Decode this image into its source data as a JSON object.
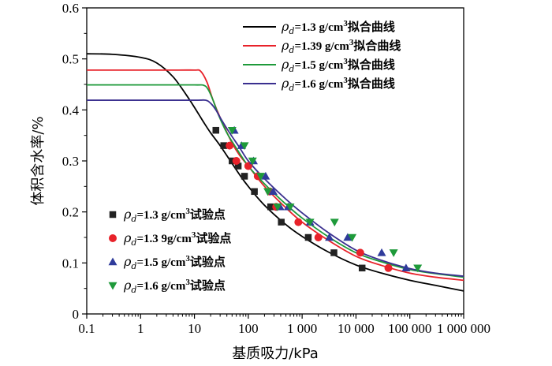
{
  "chart_data": {
    "type": "scatter",
    "title": "",
    "xlabel": "基质吸力/kPa",
    "ylabel": "体积含水率/%",
    "xscale": "log",
    "xlim": [
      0.1,
      1000000
    ],
    "ylim": [
      0,
      0.6
    ],
    "x_tick_labels": [
      "0.1",
      "1",
      "10",
      "100",
      "1 000",
      "10 000",
      "100 000",
      "1 000 000"
    ],
    "y_tick_labels": [
      "0",
      "0.1",
      "0.2",
      "0.3",
      "0.4",
      "0.5",
      "0.6"
    ],
    "legend_curves_placement": "top-right",
    "legend_points_placement": "bottom-left",
    "curves": [
      {
        "name": "ρd=1.3 g/cm³拟合曲线",
        "label_main": "=1.3 g/cm",
        "label_tail": "拟合曲线",
        "color": "#000000",
        "x": [
          0.1,
          0.3,
          1,
          2,
          4,
          7,
          10,
          15,
          20,
          30,
          50,
          70,
          100,
          200,
          500,
          1000,
          3000,
          10000,
          30000,
          100000,
          300000,
          1000000
        ],
        "y": [
          0.51,
          0.509,
          0.503,
          0.492,
          0.465,
          0.43,
          0.405,
          0.375,
          0.355,
          0.33,
          0.295,
          0.272,
          0.25,
          0.213,
          0.175,
          0.152,
          0.122,
          0.096,
          0.08,
          0.066,
          0.056,
          0.045
        ]
      },
      {
        "name": "ρd=1.39 g/cm³拟合曲线",
        "label_main": "=1.39 g/cm",
        "label_tail": "拟合曲线",
        "color": "#e8222a",
        "x": [
          0.1,
          1,
          5,
          10,
          13,
          17,
          22,
          30,
          50,
          70,
          100,
          200,
          500,
          1000,
          3000,
          10000,
          30000,
          100000,
          300000,
          1000000
        ],
        "y": [
          0.478,
          0.478,
          0.478,
          0.478,
          0.476,
          0.455,
          0.42,
          0.385,
          0.335,
          0.31,
          0.29,
          0.25,
          0.208,
          0.18,
          0.145,
          0.113,
          0.095,
          0.08,
          0.072,
          0.066
        ]
      },
      {
        "name": "ρd=1.5 g/cm³拟合曲线",
        "label_main": "=1.5 g/cm",
        "label_tail": "拟合曲线",
        "color": "#1e9a3a",
        "x": [
          0.1,
          1,
          10,
          15,
          18,
          22,
          28,
          40,
          60,
          100,
          200,
          500,
          1000,
          3000,
          10000,
          30000,
          100000,
          300000,
          1000000
        ],
        "y": [
          0.449,
          0.449,
          0.449,
          0.448,
          0.44,
          0.42,
          0.39,
          0.355,
          0.325,
          0.29,
          0.255,
          0.215,
          0.188,
          0.152,
          0.12,
          0.102,
          0.087,
          0.079,
          0.072
        ]
      },
      {
        "name": "ρd=1.6 g/cm³拟合曲线",
        "label_main": "=1.6 g/cm",
        "label_tail": "拟合曲线",
        "color": "#3a2f8f",
        "x": [
          0.1,
          1,
          10,
          16,
          20,
          25,
          32,
          45,
          70,
          100,
          200,
          500,
          1000,
          3000,
          10000,
          30000,
          100000,
          300000,
          1000000
        ],
        "y": [
          0.419,
          0.419,
          0.419,
          0.419,
          0.413,
          0.4,
          0.38,
          0.355,
          0.325,
          0.3,
          0.265,
          0.225,
          0.198,
          0.16,
          0.125,
          0.105,
          0.089,
          0.08,
          0.074
        ]
      }
    ],
    "points": [
      {
        "name": "ρd=1.3 g/cm³试验点",
        "label_main": "=1.3 g/cm",
        "label_tail": "试验点",
        "color": "#222222",
        "marker": "square",
        "x": [
          25,
          35,
          50,
          65,
          85,
          130,
          260,
          410,
          1300,
          3900,
          13000
        ],
        "y": [
          0.36,
          0.33,
          0.3,
          0.29,
          0.27,
          0.24,
          0.21,
          0.18,
          0.15,
          0.12,
          0.09
        ]
      },
      {
        "name": "ρd=1.39g/cm³试验点",
        "label_main": "=1.3 9g/cm",
        "label_tail": "试验点",
        "color": "#e8222a",
        "marker": "circle",
        "x": [
          45,
          60,
          100,
          150,
          250,
          330,
          850,
          2000,
          12000,
          40000
        ],
        "y": [
          0.33,
          0.3,
          0.29,
          0.27,
          0.24,
          0.21,
          0.18,
          0.15,
          0.12,
          0.09
        ]
      },
      {
        "name": "ρd=1.5 g/cm³试验点",
        "label_main": "=1.5 g/cm",
        "label_tail": "试验点",
        "color": "#2f3b9b",
        "marker": "triangle-up",
        "x": [
          55,
          75,
          125,
          210,
          290,
          390,
          550,
          1400,
          3200,
          7000,
          30000,
          85000
        ],
        "y": [
          0.36,
          0.33,
          0.3,
          0.27,
          0.24,
          0.21,
          0.21,
          0.18,
          0.15,
          0.15,
          0.12,
          0.09
        ]
      },
      {
        "name": "ρd=1.6 g/cm³试验点",
        "label_main": "=1.6 g/cm",
        "label_tail": "试验点",
        "color": "#1e9a3a",
        "marker": "triangle-down",
        "x": [
          50,
          85,
          120,
          170,
          230,
          350,
          600,
          1400,
          4000,
          8500,
          50000,
          140000
        ],
        "y": [
          0.36,
          0.33,
          0.3,
          0.27,
          0.24,
          0.21,
          0.21,
          0.18,
          0.18,
          0.15,
          0.12,
          0.09
        ]
      }
    ],
    "rho_symbol": "ρ",
    "rho_subscript": "d",
    "superscript": "3"
  }
}
